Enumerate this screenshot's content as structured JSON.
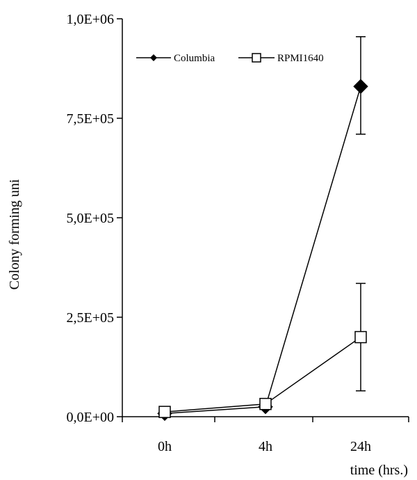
{
  "chart_data": {
    "type": "line",
    "title": "",
    "xlabel": "time (hrs.)",
    "ylabel": "Colony forming uni",
    "categories": [
      "0h",
      "4h",
      "24h"
    ],
    "ylim": [
      0,
      1000000
    ],
    "y_ticks": [
      0,
      250000,
      500000,
      750000,
      1000000
    ],
    "y_tick_labels": [
      "0,0E+00",
      "2,5E+05",
      "5,0E+05",
      "7,5E+05",
      "1,0E+06"
    ],
    "grid": false,
    "legend_position": "top-left",
    "series": [
      {
        "name": "Columbia",
        "marker": "diamond-filled",
        "color": "#000000",
        "values": [
          8000,
          25000,
          830000
        ],
        "error_low": [
          null,
          null,
          710000
        ],
        "error_high": [
          null,
          null,
          955000
        ]
      },
      {
        "name": "RPMI1640",
        "marker": "square-open",
        "color": "#000000",
        "values": [
          12000,
          32000,
          200000
        ],
        "error_low": [
          null,
          null,
          65000
        ],
        "error_high": [
          null,
          null,
          335000
        ]
      }
    ]
  }
}
